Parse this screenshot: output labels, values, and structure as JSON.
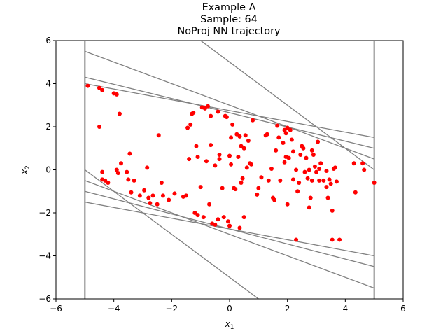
{
  "chart_data": {
    "type": "scatter",
    "title_lines": [
      "Example A",
      "Sample: 64",
      "NoProj NN trajectory"
    ],
    "xlabel": {
      "base": "x",
      "sub": "1"
    },
    "ylabel": {
      "base": "x",
      "sub": "2"
    },
    "xlim": [
      -6,
      6
    ],
    "ylim": [
      -6,
      6
    ],
    "xticks": [
      -6,
      -4,
      -2,
      0,
      2,
      4,
      6
    ],
    "yticks": [
      -6,
      -4,
      -2,
      0,
      2,
      4,
      6
    ],
    "xtick_labels": [
      "−6",
      "−4",
      "−2",
      "0",
      "2",
      "4",
      "6"
    ],
    "ytick_labels": [
      "−6",
      "−4",
      "−2",
      "0",
      "2",
      "4",
      "6"
    ],
    "grid": false,
    "colors": {
      "points": "#ff0000",
      "lines": "#808080"
    },
    "constraint_lines": [
      {
        "x1": -5,
        "y1": -6,
        "x2": -5,
        "y2": 6
      },
      {
        "x1": 5,
        "y1": -6,
        "x2": 5,
        "y2": 6
      },
      {
        "x1": -5,
        "y1": 5.5,
        "x2": 5,
        "y2": 0.5
      },
      {
        "x1": -5,
        "y1": 4.3,
        "x2": 5,
        "y2": 1.0
      },
      {
        "x1": -5,
        "y1": 4.0,
        "x2": 5,
        "y2": 1.5
      },
      {
        "x1": -5,
        "y1": 0.0,
        "x2": 1.0,
        "y2": -6.0
      },
      {
        "x1": -5,
        "y1": -0.5,
        "x2": 5,
        "y2": -5.5
      },
      {
        "x1": -5,
        "y1": -1.0,
        "x2": 5,
        "y2": -4.5
      },
      {
        "x1": -5,
        "y1": -1.5,
        "x2": 5,
        "y2": -4.0
      },
      {
        "x1": -1.0,
        "y1": 6.0,
        "x2": 5,
        "y2": 0.0
      }
    ],
    "points": [
      [
        -4.9,
        3.9
      ],
      [
        -4.5,
        3.8
      ],
      [
        -4.4,
        3.7
      ],
      [
        -3.9,
        3.5
      ],
      [
        -4.0,
        3.55
      ],
      [
        -3.8,
        2.6
      ],
      [
        -4.5,
        2.0
      ],
      [
        -4.4,
        -0.1
      ],
      [
        -4.3,
        -0.5
      ],
      [
        -4.2,
        -0.6
      ],
      [
        -4.4,
        -0.45
      ],
      [
        -3.9,
        0.0
      ],
      [
        -3.85,
        -0.15
      ],
      [
        -3.75,
        0.3
      ],
      [
        -3.55,
        -0.1
      ],
      [
        -3.45,
        0.75
      ],
      [
        -3.5,
        -0.45
      ],
      [
        -3.4,
        -1.05
      ],
      [
        -3.3,
        -0.5
      ],
      [
        -3.1,
        -1.2
      ],
      [
        -2.95,
        -0.95
      ],
      [
        -2.85,
        0.1
      ],
      [
        -2.8,
        -1.3
      ],
      [
        -2.75,
        -1.55
      ],
      [
        -2.65,
        -1.2
      ],
      [
        -2.5,
        -1.6
      ],
      [
        -2.45,
        1.6
      ],
      [
        -2.35,
        -0.6
      ],
      [
        -2.3,
        -1.2
      ],
      [
        -2.1,
        -1.4
      ],
      [
        -1.9,
        -1.1
      ],
      [
        -1.6,
        -1.25
      ],
      [
        -1.45,
        1.95
      ],
      [
        -1.35,
        2.1
      ],
      [
        -1.4,
        0.5
      ],
      [
        -1.3,
        2.6
      ],
      [
        -1.25,
        2.65
      ],
      [
        -1.15,
        1.1
      ],
      [
        -1.1,
        0.6
      ],
      [
        -1.0,
        -0.8
      ],
      [
        -0.95,
        2.9
      ],
      [
        -0.85,
        2.85
      ],
      [
        -0.75,
        2.95
      ],
      [
        -0.65,
        2.5
      ],
      [
        -0.8,
        0.4
      ],
      [
        -0.65,
        1.15
      ],
      [
        -0.5,
        0.2
      ],
      [
        -0.35,
        0.5
      ],
      [
        -0.4,
        2.7
      ],
      [
        -0.35,
        0.7
      ],
      [
        -0.25,
        -0.85
      ],
      [
        -0.15,
        2.5
      ],
      [
        -0.1,
        2.45
      ],
      [
        0.05,
        0.25
      ],
      [
        0.0,
        0.65
      ],
      [
        0.05,
        1.5
      ],
      [
        0.1,
        2.1
      ],
      [
        0.15,
        -0.85
      ],
      [
        0.2,
        -0.9
      ],
      [
        0.25,
        1.65
      ],
      [
        0.3,
        0.6
      ],
      [
        0.35,
        1.55
      ],
      [
        0.4,
        1.1
      ],
      [
        0.45,
        -0.4
      ],
      [
        0.5,
        1.0
      ],
      [
        0.55,
        1.6
      ],
      [
        0.6,
        0.1
      ],
      [
        0.65,
        1.35
      ],
      [
        0.7,
        0.3
      ],
      [
        0.75,
        0.25
      ],
      [
        0.8,
        2.3
      ],
      [
        0.4,
        -0.6
      ],
      [
        -1.5,
        -1.2
      ],
      [
        -0.9,
        -2.2
      ],
      [
        -1.2,
        -2.0
      ],
      [
        -1.1,
        -2.1
      ],
      [
        -0.7,
        -1.6
      ],
      [
        -0.6,
        -2.5
      ],
      [
        -0.4,
        -2.3
      ],
      [
        -0.5,
        -2.55
      ],
      [
        -0.2,
        -2.2
      ],
      [
        -0.05,
        -2.4
      ],
      [
        0.0,
        -2.6
      ],
      [
        0.35,
        -2.7
      ],
      [
        0.5,
        -2.2
      ],
      [
        1.0,
        -0.85
      ],
      [
        0.95,
        -1.15
      ],
      [
        1.1,
        -0.35
      ],
      [
        1.25,
        1.6
      ],
      [
        1.3,
        1.65
      ],
      [
        1.35,
        -0.5
      ],
      [
        1.45,
        0.05
      ],
      [
        1.5,
        -1.3
      ],
      [
        1.55,
        -1.4
      ],
      [
        1.6,
        0.9
      ],
      [
        1.65,
        2.05
      ],
      [
        1.7,
        1.5
      ],
      [
        1.75,
        -0.5
      ],
      [
        1.85,
        1.25
      ],
      [
        1.9,
        1.85
      ],
      [
        1.95,
        1.7
      ],
      [
        2.0,
        1.95
      ],
      [
        1.9,
        0.35
      ],
      [
        1.95,
        0.6
      ],
      [
        2.0,
        -1.6
      ],
      [
        2.05,
        0.55
      ],
      [
        2.1,
        1.85
      ],
      [
        2.15,
        1.4
      ],
      [
        2.2,
        0.85
      ],
      [
        2.3,
        0.0
      ],
      [
        2.35,
        -1.0
      ],
      [
        2.4,
        -0.6
      ],
      [
        2.45,
        0.7
      ],
      [
        2.5,
        1.1
      ],
      [
        2.55,
        1.0
      ],
      [
        2.6,
        -0.1
      ],
      [
        2.65,
        0.55
      ],
      [
        2.7,
        -0.4
      ],
      [
        2.75,
        0.0
      ],
      [
        2.75,
        -1.75
      ],
      [
        2.8,
        -1.3
      ],
      [
        2.85,
        0.9
      ],
      [
        2.9,
        0.7
      ],
      [
        2.95,
        0.15
      ],
      [
        3.0,
        -0.1
      ],
      [
        3.05,
        1.3
      ],
      [
        3.1,
        -0.5
      ],
      [
        3.15,
        0.3
      ],
      [
        3.25,
        -0.5
      ],
      [
        3.35,
        -0.8
      ],
      [
        3.4,
        -1.3
      ],
      [
        3.45,
        -0.45
      ],
      [
        3.5,
        -0.65
      ],
      [
        3.55,
        -1.9
      ],
      [
        3.6,
        0.05
      ],
      [
        3.65,
        0.1
      ],
      [
        3.7,
        -0.55
      ],
      [
        3.8,
        -3.25
      ],
      [
        3.55,
        -3.25
      ],
      [
        2.3,
        -3.25
      ],
      [
        4.3,
        0.3
      ],
      [
        4.35,
        -1.05
      ],
      [
        4.6,
        0.3
      ],
      [
        4.65,
        0.0
      ],
      [
        5.0,
        -0.6
      ],
      [
        3.1,
        0.05
      ],
      [
        2.85,
        -0.5
      ],
      [
        3.35,
        -0.05
      ],
      [
        2.2,
        -0.45
      ]
    ]
  }
}
